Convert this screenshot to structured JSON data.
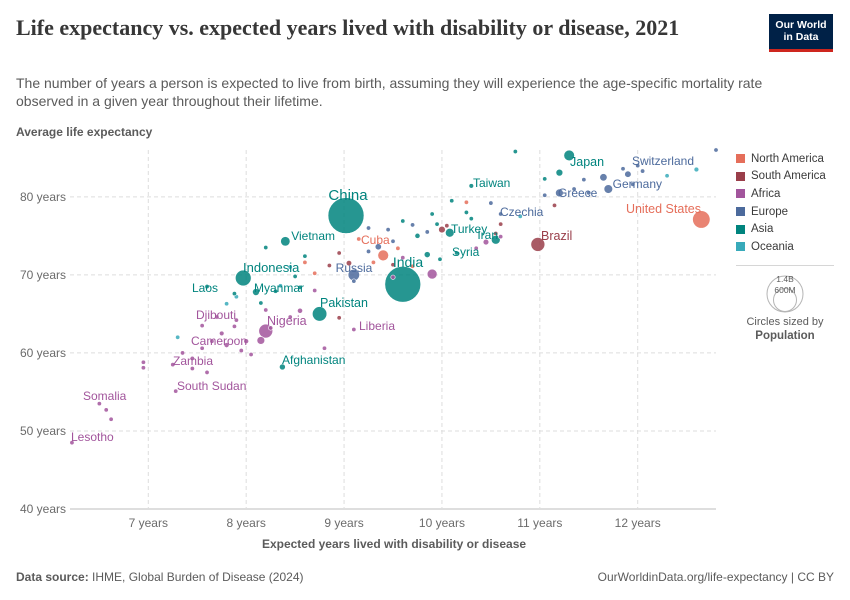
{
  "header": {
    "title": "Life expectancy vs. expected years lived with disability or disease, 2021",
    "subtitle": "The number of years a person is expected to live from birth, assuming they will experience the age-specific mortality rate observed in a given year throughout their lifetime.",
    "logo_line1": "Our World",
    "logo_line2": "in Data"
  },
  "legend": {
    "items": [
      {
        "label": "North America",
        "color": "#e56e5a"
      },
      {
        "label": "South America",
        "color": "#9a3e4a"
      },
      {
        "label": "Africa",
        "color": "#a2559c"
      },
      {
        "label": "Europe",
        "color": "#4c6a9c"
      },
      {
        "label": "Asia",
        "color": "#00847e"
      },
      {
        "label": "Oceania",
        "color": "#38aaba"
      }
    ],
    "size_max_label": "1.4B",
    "size_min_label": "600M",
    "size_caption": "Circles sized by",
    "size_variable": "Population"
  },
  "footer": {
    "source_label": "Data source:",
    "source_text": "IHME, Global Burden of Disease (2024)",
    "url": "OurWorldinData.org/life-expectancy | CC BY"
  },
  "chart_data": {
    "type": "scatter",
    "xlabel": "Expected years lived with disability or disease",
    "ylabel": "Average life expectancy",
    "xlim": [
      6.2,
      12.8
    ],
    "ylim": [
      40,
      86
    ],
    "x_ticks": [
      7,
      8,
      9,
      10,
      11,
      12
    ],
    "x_tick_labels": [
      "7 years",
      "8 years",
      "9 years",
      "10 years",
      "11 years",
      "12 years"
    ],
    "y_ticks": [
      40,
      50,
      60,
      70,
      80
    ],
    "y_tick_labels": [
      "40 years",
      "50 years",
      "60 years",
      "70 years",
      "80 years"
    ],
    "grid": true,
    "legend_position": "right",
    "colors": {
      "North America": "#e56e5a",
      "South America": "#9a3e4a",
      "Africa": "#a2559c",
      "Europe": "#4c6a9c",
      "Asia": "#00847e",
      "Oceania": "#38aaba"
    },
    "labeled_points": [
      {
        "label": "China",
        "x": 9.02,
        "y": 77.6,
        "pop": 1.42,
        "region": "Asia"
      },
      {
        "label": "India",
        "x": 9.6,
        "y": 68.8,
        "pop": 1.41,
        "region": "Asia"
      },
      {
        "label": "Japan",
        "x": 11.3,
        "y": 85.3,
        "pop": 0.125,
        "region": "Asia"
      },
      {
        "label": "Switzerland",
        "x": 12.0,
        "y": 84.0,
        "pop": 0.009,
        "region": "Europe"
      },
      {
        "label": "Taiwan",
        "x": 10.3,
        "y": 81.4,
        "pop": 0.024,
        "region": "Asia"
      },
      {
        "label": "Germany",
        "x": 11.7,
        "y": 81.0,
        "pop": 0.083,
        "region": "Europe"
      },
      {
        "label": "Greece",
        "x": 11.5,
        "y": 80.5,
        "pop": 0.01,
        "region": "Europe"
      },
      {
        "label": "United States",
        "x": 12.65,
        "y": 77.1,
        "pop": 0.336,
        "region": "North America"
      },
      {
        "label": "Czechia",
        "x": 10.6,
        "y": 77.8,
        "pop": 0.011,
        "region": "Europe"
      },
      {
        "label": "Vietnam",
        "x": 8.4,
        "y": 74.3,
        "pop": 0.098,
        "region": "Asia"
      },
      {
        "label": "Cuba",
        "x": 9.15,
        "y": 74.6,
        "pop": 0.011,
        "region": "North America"
      },
      {
        "label": "Turkey",
        "x": 10.08,
        "y": 75.4,
        "pop": 0.085,
        "region": "Asia"
      },
      {
        "label": "Iran",
        "x": 10.55,
        "y": 74.5,
        "pop": 0.088,
        "region": "Asia"
      },
      {
        "label": "Brazil",
        "x": 10.98,
        "y": 73.9,
        "pop": 0.214,
        "region": "South America"
      },
      {
        "label": "Syria",
        "x": 9.98,
        "y": 72.0,
        "pop": 0.021,
        "region": "Asia"
      },
      {
        "label": "Russia",
        "x": 9.1,
        "y": 70.0,
        "pop": 0.144,
        "region": "Europe"
      },
      {
        "label": "Indonesia",
        "x": 7.97,
        "y": 69.6,
        "pop": 0.274,
        "region": "Asia"
      },
      {
        "label": "Laos",
        "x": 7.88,
        "y": 67.6,
        "pop": 0.007,
        "region": "Asia"
      },
      {
        "label": "Myanmar",
        "x": 8.1,
        "y": 67.8,
        "pop": 0.054,
        "region": "Asia"
      },
      {
        "label": "Pakistan",
        "x": 8.75,
        "y": 65.0,
        "pop": 0.231,
        "region": "Asia"
      },
      {
        "label": "Djibouti",
        "x": 7.88,
        "y": 63.4,
        "pop": 0.001,
        "region": "Africa"
      },
      {
        "label": "Nigeria",
        "x": 8.2,
        "y": 62.8,
        "pop": 0.213,
        "region": "Africa"
      },
      {
        "label": "Liberia",
        "x": 9.1,
        "y": 63.0,
        "pop": 0.005,
        "region": "Africa"
      },
      {
        "label": "Cameroon",
        "x": 8.0,
        "y": 61.5,
        "pop": 0.027,
        "region": "Africa"
      },
      {
        "label": "Afghanistan",
        "x": 8.37,
        "y": 58.2,
        "pop": 0.04,
        "region": "Asia"
      },
      {
        "label": "Zambia",
        "x": 7.45,
        "y": 58.0,
        "pop": 0.019,
        "region": "Africa"
      },
      {
        "label": "South Sudan",
        "x": 7.28,
        "y": 55.1,
        "pop": 0.011,
        "region": "Africa"
      },
      {
        "label": "Somalia",
        "x": 6.57,
        "y": 52.7,
        "pop": 0.017,
        "region": "Africa"
      },
      {
        "label": "Lesotho",
        "x": 6.22,
        "y": 48.5,
        "pop": 0.002,
        "region": "Africa"
      }
    ],
    "points": [
      {
        "x": 12.8,
        "y": 86.0,
        "pop": 0.01,
        "region": "Europe"
      },
      {
        "x": 12.6,
        "y": 83.5,
        "pop": 0.026,
        "region": "Oceania"
      },
      {
        "x": 12.3,
        "y": 82.7,
        "pop": 0.005,
        "region": "Oceania"
      },
      {
        "x": 12.05,
        "y": 83.3,
        "pop": 0.01,
        "region": "Europe"
      },
      {
        "x": 11.9,
        "y": 82.9,
        "pop": 0.047,
        "region": "Europe"
      },
      {
        "x": 11.65,
        "y": 82.5,
        "pop": 0.06,
        "region": "Europe"
      },
      {
        "x": 11.85,
        "y": 83.6,
        "pop": 0.006,
        "region": "Europe"
      },
      {
        "x": 11.45,
        "y": 82.2,
        "pop": 0.01,
        "region": "Europe"
      },
      {
        "x": 11.2,
        "y": 83.1,
        "pop": 0.052,
        "region": "Asia"
      },
      {
        "x": 11.05,
        "y": 82.3,
        "pop": 0.006,
        "region": "Asia"
      },
      {
        "x": 11.95,
        "y": 81.6,
        "pop": 0.017,
        "region": "Europe"
      },
      {
        "x": 11.35,
        "y": 81.0,
        "pop": 0.01,
        "region": "Europe"
      },
      {
        "x": 11.05,
        "y": 80.2,
        "pop": 0.005,
        "region": "Europe"
      },
      {
        "x": 11.2,
        "y": 80.5,
        "pop": 0.068,
        "region": "Europe"
      },
      {
        "x": 11.15,
        "y": 78.9,
        "pop": 0.009,
        "region": "South America"
      },
      {
        "x": 10.75,
        "y": 85.8,
        "pop": 0.007,
        "region": "Asia"
      },
      {
        "x": 10.5,
        "y": 79.2,
        "pop": 0.004,
        "region": "Europe"
      },
      {
        "x": 10.25,
        "y": 79.3,
        "pop": 0.004,
        "region": "North America"
      },
      {
        "x": 10.25,
        "y": 78.0,
        "pop": 0.008,
        "region": "Asia"
      },
      {
        "x": 10.1,
        "y": 79.5,
        "pop": 0.01,
        "region": "Asia"
      },
      {
        "x": 10.6,
        "y": 76.5,
        "pop": 0.018,
        "region": "South America"
      },
      {
        "x": 10.55,
        "y": 75.3,
        "pop": 0.006,
        "region": "South America"
      },
      {
        "x": 10.05,
        "y": 76.3,
        "pop": 0.008,
        "region": "South America"
      },
      {
        "x": 10.0,
        "y": 75.8,
        "pop": 0.05,
        "region": "South America"
      },
      {
        "x": 9.85,
        "y": 75.5,
        "pop": 0.019,
        "region": "Europe"
      },
      {
        "x": 9.95,
        "y": 76.5,
        "pop": 0.01,
        "region": "Asia"
      },
      {
        "x": 9.75,
        "y": 75.0,
        "pop": 0.03,
        "region": "Asia"
      },
      {
        "x": 9.7,
        "y": 76.4,
        "pop": 0.005,
        "region": "Europe"
      },
      {
        "x": 9.5,
        "y": 74.3,
        "pop": 0.019,
        "region": "Europe"
      },
      {
        "x": 9.55,
        "y": 73.4,
        "pop": 0.006,
        "region": "North America"
      },
      {
        "x": 9.4,
        "y": 72.5,
        "pop": 0.127,
        "region": "North America"
      },
      {
        "x": 9.35,
        "y": 73.6,
        "pop": 0.044,
        "region": "Europe"
      },
      {
        "x": 9.25,
        "y": 73.0,
        "pop": 0.01,
        "region": "Europe"
      },
      {
        "x": 9.3,
        "y": 71.6,
        "pop": 0.006,
        "region": "North America"
      },
      {
        "x": 9.6,
        "y": 72.2,
        "pop": 0.01,
        "region": "Africa"
      },
      {
        "x": 9.7,
        "y": 71.1,
        "pop": 0.013,
        "region": "North America"
      },
      {
        "x": 9.85,
        "y": 72.6,
        "pop": 0.041,
        "region": "Asia"
      },
      {
        "x": 9.9,
        "y": 70.1,
        "pop": 0.108,
        "region": "Africa"
      },
      {
        "x": 10.15,
        "y": 72.8,
        "pop": 0.02,
        "region": "Asia"
      },
      {
        "x": 10.35,
        "y": 73.4,
        "pop": 0.012,
        "region": "Africa"
      },
      {
        "x": 10.45,
        "y": 74.2,
        "pop": 0.036,
        "region": "Africa"
      },
      {
        "x": 9.05,
        "y": 71.5,
        "pop": 0.033,
        "region": "South America"
      },
      {
        "x": 8.95,
        "y": 72.8,
        "pop": 0.007,
        "region": "South America"
      },
      {
        "x": 8.85,
        "y": 71.2,
        "pop": 0.017,
        "region": "South America"
      },
      {
        "x": 8.7,
        "y": 70.2,
        "pop": 0.011,
        "region": "North America"
      },
      {
        "x": 8.6,
        "y": 71.6,
        "pop": 0.012,
        "region": "North America"
      },
      {
        "x": 8.5,
        "y": 69.8,
        "pop": 0.01,
        "region": "Asia"
      },
      {
        "x": 8.55,
        "y": 68.4,
        "pop": 0.007,
        "region": "Asia"
      },
      {
        "x": 8.3,
        "y": 67.9,
        "pop": 0.017,
        "region": "Asia"
      },
      {
        "x": 8.15,
        "y": 66.4,
        "pop": 0.003,
        "region": "Asia"
      },
      {
        "x": 8.7,
        "y": 68.0,
        "pop": 0.005,
        "region": "Africa"
      },
      {
        "x": 8.55,
        "y": 65.4,
        "pop": 0.03,
        "region": "Africa"
      },
      {
        "x": 8.45,
        "y": 64.6,
        "pop": 0.017,
        "region": "Africa"
      },
      {
        "x": 8.2,
        "y": 65.5,
        "pop": 0.008,
        "region": "Africa"
      },
      {
        "x": 8.25,
        "y": 63.2,
        "pop": 0.013,
        "region": "Africa"
      },
      {
        "x": 8.15,
        "y": 61.6,
        "pop": 0.067,
        "region": "Africa"
      },
      {
        "x": 7.9,
        "y": 64.2,
        "pop": 0.02,
        "region": "Africa"
      },
      {
        "x": 7.7,
        "y": 64.6,
        "pop": 0.012,
        "region": "Africa"
      },
      {
        "x": 7.75,
        "y": 62.5,
        "pop": 0.025,
        "region": "Africa"
      },
      {
        "x": 7.8,
        "y": 61.0,
        "pop": 0.028,
        "region": "Africa"
      },
      {
        "x": 7.65,
        "y": 61.5,
        "pop": 0.009,
        "region": "Africa"
      },
      {
        "x": 7.55,
        "y": 60.6,
        "pop": 0.016,
        "region": "Africa"
      },
      {
        "x": 7.35,
        "y": 60.0,
        "pop": 0.019,
        "region": "Africa"
      },
      {
        "x": 7.3,
        "y": 62.0,
        "pop": 0.006,
        "region": "Oceania"
      },
      {
        "x": 7.55,
        "y": 63.5,
        "pop": 0.004,
        "region": "Africa"
      },
      {
        "x": 7.45,
        "y": 59.3,
        "pop": 0.005,
        "region": "Africa"
      },
      {
        "x": 7.6,
        "y": 57.5,
        "pop": 0.006,
        "region": "Africa"
      },
      {
        "x": 7.95,
        "y": 60.3,
        "pop": 0.014,
        "region": "Africa"
      },
      {
        "x": 8.05,
        "y": 59.8,
        "pop": 0.01,
        "region": "Africa"
      },
      {
        "x": 7.25,
        "y": 58.5,
        "pop": 0.01,
        "region": "Africa"
      },
      {
        "x": 6.95,
        "y": 58.8,
        "pop": 0.002,
        "region": "Africa"
      },
      {
        "x": 6.95,
        "y": 58.1,
        "pop": 0.002,
        "region": "Africa"
      },
      {
        "x": 6.5,
        "y": 53.5,
        "pop": 0.003,
        "region": "Africa"
      },
      {
        "x": 6.62,
        "y": 51.5,
        "pop": 0.003,
        "region": "Africa"
      },
      {
        "x": 7.9,
        "y": 67.2,
        "pop": 0.011,
        "region": "Oceania"
      },
      {
        "x": 7.8,
        "y": 66.3,
        "pop": 0.009,
        "region": "Oceania"
      },
      {
        "x": 7.6,
        "y": 68.5,
        "pop": 0.004,
        "region": "Asia"
      },
      {
        "x": 8.2,
        "y": 73.5,
        "pop": 0.005,
        "region": "Asia"
      },
      {
        "x": 8.45,
        "y": 71.0,
        "pop": 0.006,
        "region": "Oceania"
      },
      {
        "x": 8.6,
        "y": 72.4,
        "pop": 0.007,
        "region": "Asia"
      },
      {
        "x": 8.35,
        "y": 68.6,
        "pop": 0.004,
        "region": "Oceania"
      },
      {
        "x": 9.25,
        "y": 76.0,
        "pop": 0.004,
        "region": "Europe"
      },
      {
        "x": 9.6,
        "y": 76.9,
        "pop": 0.006,
        "region": "Asia"
      },
      {
        "x": 9.9,
        "y": 77.8,
        "pop": 0.004,
        "region": "Asia"
      },
      {
        "x": 10.3,
        "y": 77.2,
        "pop": 0.015,
        "region": "Asia"
      },
      {
        "x": 10.8,
        "y": 77.5,
        "pop": 0.004,
        "region": "Oceania"
      },
      {
        "x": 9.45,
        "y": 75.8,
        "pop": 0.009,
        "region": "Europe"
      },
      {
        "x": 9.1,
        "y": 69.2,
        "pop": 0.005,
        "region": "Europe"
      },
      {
        "x": 9.5,
        "y": 69.7,
        "pop": 0.005,
        "region": "Africa"
      },
      {
        "x": 10.6,
        "y": 74.9,
        "pop": 0.004,
        "region": "Africa"
      },
      {
        "x": 8.95,
        "y": 64.5,
        "pop": 0.004,
        "region": "South America"
      },
      {
        "x": 8.8,
        "y": 60.6,
        "pop": 0.004,
        "region": "Africa"
      },
      {
        "x": 9.5,
        "y": 71.3,
        "pop": 0.004,
        "region": "South America"
      }
    ]
  }
}
